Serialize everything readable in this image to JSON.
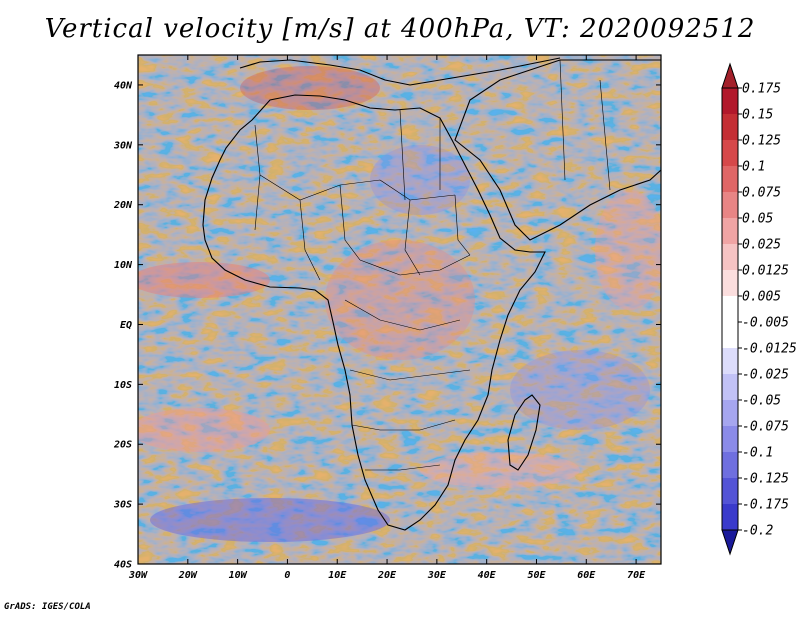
{
  "title": "Vertical velocity [m/s] at 400hPa, VT: 2020092512",
  "footer": "GrADS: IGES/COLA",
  "map": {
    "lon_range": [
      -30,
      75
    ],
    "lat_range": [
      -40,
      45
    ],
    "lat_ticks": [
      {
        "value": 40,
        "label": "40N"
      },
      {
        "value": 30,
        "label": "30N"
      },
      {
        "value": 20,
        "label": "20N"
      },
      {
        "value": 10,
        "label": "10N"
      },
      {
        "value": 0,
        "label": "EQ"
      },
      {
        "value": -10,
        "label": "10S"
      },
      {
        "value": -20,
        "label": "20S"
      },
      {
        "value": -30,
        "label": "30S"
      },
      {
        "value": -40,
        "label": "40S"
      }
    ],
    "lon_ticks": [
      {
        "value": -30,
        "label": "30W"
      },
      {
        "value": -20,
        "label": "20W"
      },
      {
        "value": -10,
        "label": "10W"
      },
      {
        "value": 0,
        "label": "0"
      },
      {
        "value": 10,
        "label": "10E"
      },
      {
        "value": 20,
        "label": "20E"
      },
      {
        "value": 30,
        "label": "30E"
      },
      {
        "value": 40,
        "label": "40E"
      },
      {
        "value": 50,
        "label": "50E"
      },
      {
        "value": 60,
        "label": "60E"
      },
      {
        "value": 70,
        "label": "70E"
      }
    ]
  },
  "colorbar": {
    "levels": [
      {
        "label": "0.175",
        "color": "#b2182b"
      },
      {
        "label": "0.15",
        "color": "#c42e34"
      },
      {
        "label": "0.125",
        "color": "#d6484a"
      },
      {
        "label": "0.1",
        "color": "#e06666"
      },
      {
        "label": "0.075",
        "color": "#e88585"
      },
      {
        "label": "0.05",
        "color": "#f0a4a4"
      },
      {
        "label": "0.025",
        "color": "#f6c3c3"
      },
      {
        "label": "0.0125",
        "color": "#fbdede"
      },
      {
        "label": "0.005",
        "color": "#ffffff"
      },
      {
        "label": "-0.005",
        "color": "#ffffff"
      },
      {
        "label": "-0.0125",
        "color": "#dcdcfb"
      },
      {
        "label": "-0.025",
        "color": "#c2c2f6"
      },
      {
        "label": "-0.05",
        "color": "#a6a6ef"
      },
      {
        "label": "-0.075",
        "color": "#8b8be8"
      },
      {
        "label": "-0.1",
        "color": "#6f6fdf"
      },
      {
        "label": "-0.125",
        "color": "#5454d6"
      },
      {
        "label": "-0.175",
        "color": "#3a3acb"
      },
      {
        "label": "-0.2",
        "color": "#2020b5"
      }
    ],
    "top_color": "#a3202a",
    "bottom_color": "#1a1a9a"
  }
}
